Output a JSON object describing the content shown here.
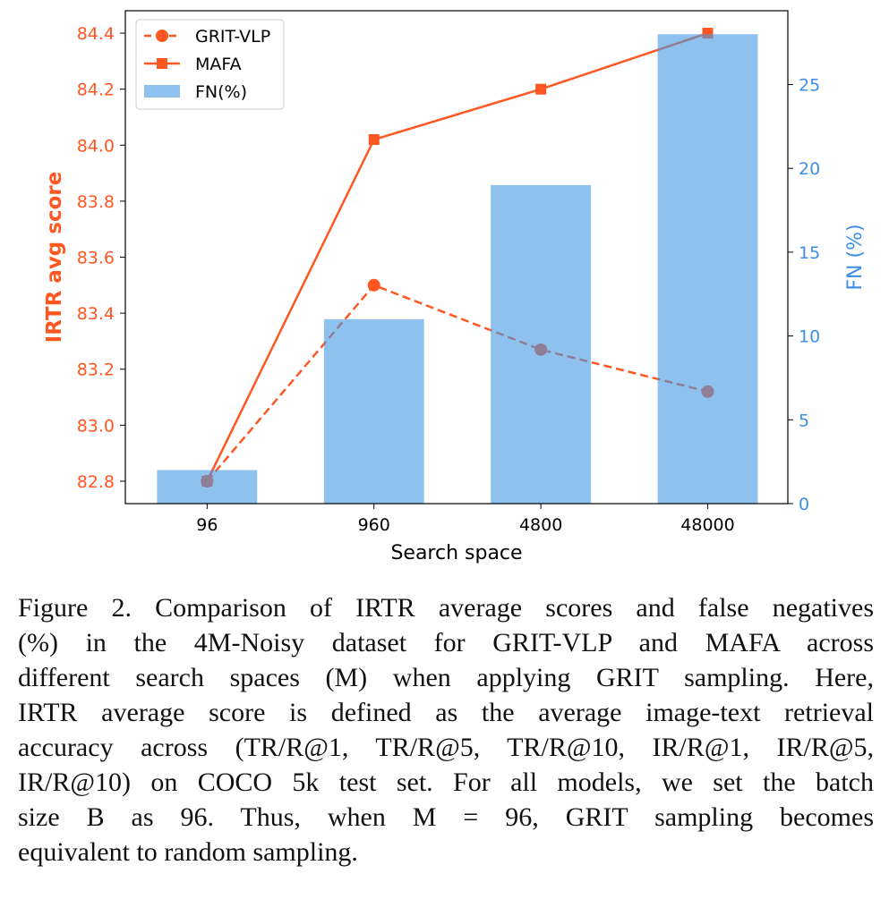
{
  "chart_data": {
    "type": "bar+line",
    "categories": [
      "96",
      "960",
      "4800",
      "48000"
    ],
    "xlabel": "Search space",
    "ylabel_left": "IRTR avg score",
    "ylabel_right": "FN (%)",
    "ylim_left": [
      82.72,
      84.48
    ],
    "ylim_right": [
      0,
      29.4
    ],
    "yticks_left": [
      "82.8",
      "83.0",
      "83.2",
      "83.4",
      "83.6",
      "83.8",
      "84.0",
      "84.2",
      "84.4"
    ],
    "yticks_right": [
      "0",
      "5",
      "10",
      "15",
      "20",
      "25"
    ],
    "series": [
      {
        "name": "GRIT-VLP",
        "axis": "left",
        "style": "dashed-circle",
        "values": [
          82.8,
          83.5,
          83.27,
          83.12
        ]
      },
      {
        "name": "MAFA",
        "axis": "left",
        "style": "solid-square",
        "values": [
          82.8,
          84.02,
          84.2,
          84.4
        ]
      },
      {
        "name": "FN(%)",
        "axis": "right",
        "style": "bar",
        "values": [
          2,
          11,
          19,
          28
        ]
      }
    ],
    "legend": {
      "placement": "top-left",
      "entries": [
        "GRIT-VLP",
        "MAFA",
        "FN(%)"
      ]
    },
    "grid": false,
    "colors": {
      "line": "#ff5722",
      "bar": "#4498e4",
      "left_axis": "#ff5722",
      "right_axis": "#3d8fe6"
    }
  },
  "caption": {
    "lines": [
      "Figure 2. Comparison of IRTR average scores and false negatives",
      "(%) in the 4M-Noisy dataset for GRIT-VLP and MAFA across",
      "different search spaces (M) when applying GRIT sampling. Here,",
      "IRTR average score is defined as the average image-text retrieval",
      "accuracy across (TR/R@1, TR/R@5, TR/R@10, IR/R@1, IR/R@5,",
      "IR/R@10) on COCO 5k test set. For all models, we set the batch",
      "size B as 96. Thus, when M = 96, GRIT sampling becomes",
      "equivalent to random sampling."
    ]
  }
}
